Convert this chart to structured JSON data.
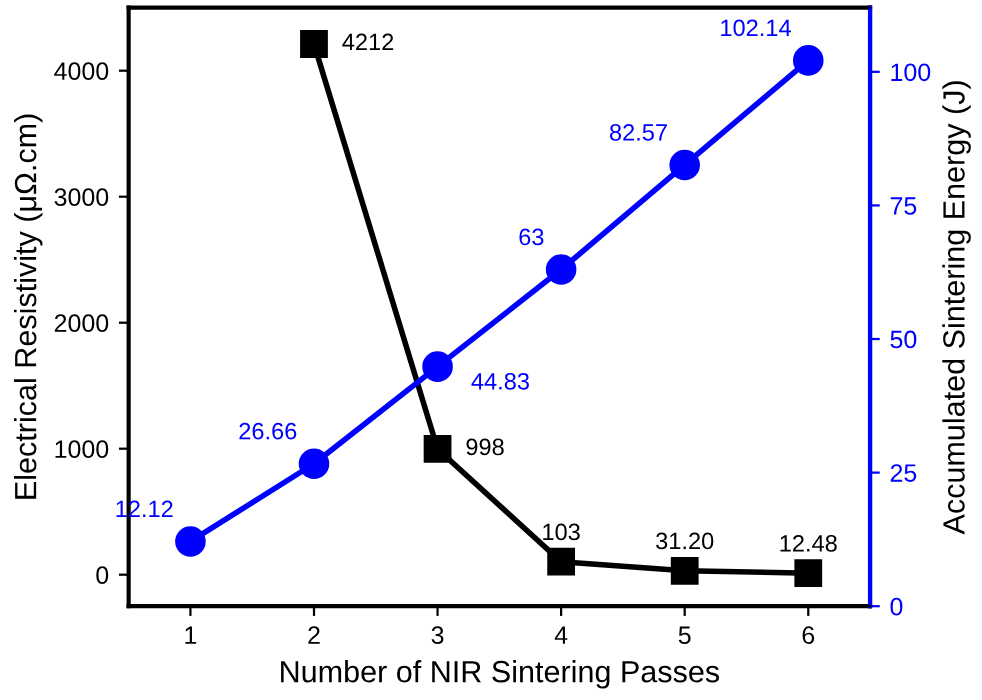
{
  "chart_data": {
    "type": "line",
    "xlabel": "Number of NIR Sintering Passes",
    "ylabel": "Electrical Resistivity (μΩ.cm)",
    "y2label": "Accumulated Sintering Energy (J)",
    "x": [
      1,
      2,
      3,
      4,
      5,
      6
    ],
    "xlim": [
      0.5,
      6.5
    ],
    "xticks": [
      1,
      2,
      3,
      4,
      5,
      6
    ],
    "ylim": [
      -250,
      4500
    ],
    "yticks": [
      0,
      1000,
      2000,
      3000,
      4000
    ],
    "y2lim": [
      0,
      112
    ],
    "y2ticks": [
      0,
      25,
      50,
      75,
      100
    ],
    "grid": false,
    "legend": false,
    "line_style": "solid",
    "series": [
      {
        "color": "#000000",
        "marker": "square",
        "values": [
          null,
          4212,
          998,
          103,
          31.2,
          12.48
        ],
        "value_labels": [
          null,
          "4212",
          "998",
          "103",
          "31.20",
          "12.48"
        ]
      },
      {
        "color": "#0000ff",
        "marker": "circle",
        "axis": "y2",
        "values": [
          12.12,
          26.66,
          44.83,
          63,
          82.57,
          102.14
        ],
        "value_labels": [
          "12.12",
          "26.66",
          "44.83",
          "63",
          "82.57",
          "102.14"
        ]
      }
    ]
  }
}
